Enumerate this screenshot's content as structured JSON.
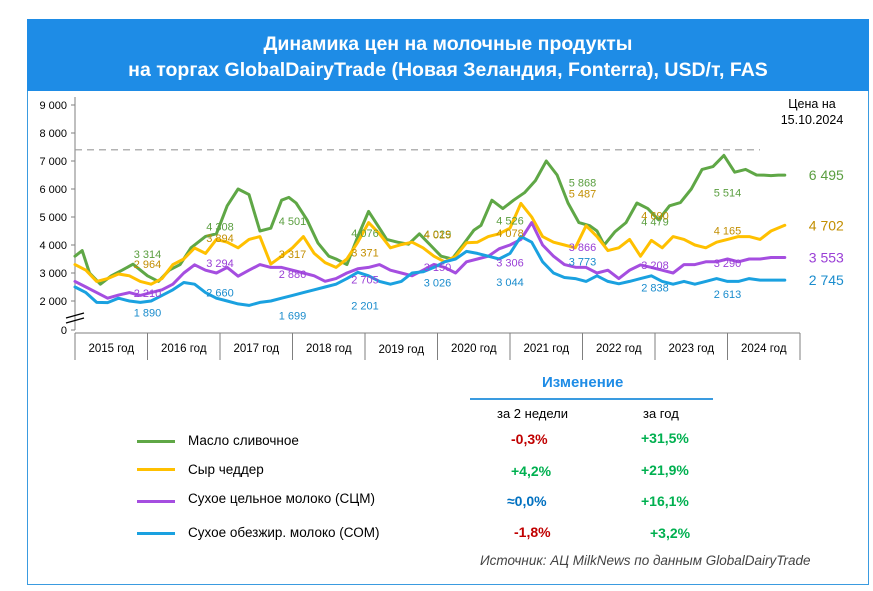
{
  "title": {
    "line1": "Динамика цен на молочные продукты",
    "line2": "на торгах GlobalDairyTrade (Новая Зеландия, Fonterra), USD/т, FAS"
  },
  "price_note": {
    "line1": "Цена на",
    "line2": "15.10.2024"
  },
  "colors": {
    "butter": "#5fa746",
    "cheddar": "#ffc000",
    "wmp": "#a54ee0",
    "smp": "#1aa1e0",
    "negative": "#c00000",
    "positive": "#00b050",
    "neutral": "#0070c0",
    "header": "#1e8ce6"
  },
  "change": {
    "title": "Изменение",
    "col_2w": "за 2 недели",
    "col_year": "за год",
    "rows": [
      {
        "label": "Масло сливочное",
        "w2": "-0,3%",
        "year": "+31,5%",
        "w2_tone": "negative",
        "year_tone": "positive"
      },
      {
        "label": "Сыр чеддер",
        "w2": "+4,2%",
        "year": "+21,9%",
        "w2_tone": "positive",
        "year_tone": "positive"
      },
      {
        "label": "Сухое цельное молоко (СЦМ)",
        "w2": "≈0,0%",
        "year": "+16,1%",
        "w2_tone": "neutral",
        "year_tone": "positive"
      },
      {
        "label": "Сухое обезжир. молоко (СОМ)",
        "w2": "-1,8%",
        "year": "+3,2%",
        "w2_tone": "negative",
        "year_tone": "positive"
      }
    ]
  },
  "source": "Источник: АЦ MilkNews по данным GlobalDairyTrade",
  "chart_data": {
    "type": "line",
    "x_categories": [
      "2015 год",
      "2016 год",
      "2017 год",
      "2018 год",
      "2019 год",
      "2020 год",
      "2021 год",
      "2022 год",
      "2023 год",
      "2024 год"
    ],
    "y_ticks": [
      "0",
      "2 000",
      "3 000",
      "4 000",
      "5 000",
      "6 000",
      "7 000",
      "8 000",
      "9 000"
    ],
    "ylim": [
      0,
      9000
    ],
    "y_axis_break": true,
    "reference_line": 7400,
    "series": [
      {
        "key": "butter",
        "name": "Масло сливочное",
        "x": [
          2015.0,
          2015.1,
          2015.2,
          2015.35,
          2015.5,
          2015.65,
          2015.8,
          2016.0,
          2016.15,
          2016.3,
          2016.45,
          2016.6,
          2016.8,
          2016.95,
          2017.1,
          2017.25,
          2017.4,
          2017.55,
          2017.7,
          2017.85,
          2017.95,
          2018.05,
          2018.2,
          2018.35,
          2018.5,
          2018.6,
          2018.75,
          2018.9,
          2019.05,
          2019.2,
          2019.3,
          2019.45,
          2019.6,
          2019.75,
          2019.9,
          2020.05,
          2020.2,
          2020.35,
          2020.5,
          2020.6,
          2020.75,
          2020.9,
          2021.05,
          2021.2,
          2021.35,
          2021.5,
          2021.65,
          2021.8,
          2021.95,
          2022.1,
          2022.2,
          2022.3,
          2022.45,
          2022.6,
          2022.75,
          2022.9,
          2023.05,
          2023.2,
          2023.35,
          2023.5,
          2023.65,
          2023.8,
          2023.95,
          2024.1,
          2024.25,
          2024.4,
          2024.5,
          2024.6,
          2024.7,
          2024.79
        ],
        "y": [
          3600,
          3800,
          3000,
          2600,
          2900,
          3100,
          3314,
          2900,
          2700,
          3100,
          3300,
          3900,
          4308,
          4400,
          5400,
          6000,
          5800,
          4501,
          4600,
          5600,
          5700,
          5500,
          4900,
          4076,
          3600,
          3500,
          3300,
          4300,
          5200,
          4600,
          4200,
          4100,
          4029,
          4400,
          4000,
          3600,
          3500,
          4000,
          4526,
          4700,
          5600,
          5300,
          5600,
          5868,
          6300,
          7000,
          6500,
          5500,
          4800,
          4690,
          4500,
          4000,
          4479,
          4800,
          5500,
          5300,
          4900,
          5400,
          5514,
          6000,
          6700,
          6800,
          7200,
          6600,
          6700,
          6500,
          6495,
          6480,
          6495,
          6495
        ]
      },
      {
        "key": "cheddar",
        "name": "Сыр чеддер",
        "x": [
          2015.0,
          2015.15,
          2015.3,
          2015.45,
          2015.6,
          2015.75,
          2015.9,
          2016.05,
          2016.2,
          2016.35,
          2016.5,
          2016.65,
          2016.8,
          2016.95,
          2017.1,
          2017.25,
          2017.4,
          2017.55,
          2017.7,
          2017.85,
          2018.0,
          2018.15,
          2018.3,
          2018.45,
          2018.6,
          2018.75,
          2018.9,
          2019.05,
          2019.2,
          2019.35,
          2019.5,
          2019.65,
          2019.8,
          2019.95,
          2020.1,
          2020.25,
          2020.4,
          2020.55,
          2020.7,
          2020.85,
          2021.0,
          2021.15,
          2021.3,
          2021.45,
          2021.6,
          2021.75,
          2021.9,
          2022.05,
          2022.2,
          2022.35,
          2022.5,
          2022.65,
          2022.8,
          2022.95,
          2023.1,
          2023.25,
          2023.4,
          2023.55,
          2023.7,
          2023.85,
          2024.0,
          2024.15,
          2024.3,
          2024.45,
          2024.6,
          2024.79
        ],
        "y": [
          3300,
          3100,
          2700,
          2800,
          2964,
          2900,
          2700,
          2600,
          2800,
          3300,
          3500,
          3894,
          3700,
          4200,
          4100,
          3900,
          4200,
          4300,
          3317,
          3600,
          3900,
          4300,
          3700,
          3371,
          3200,
          3500,
          4100,
          4800,
          4400,
          3900,
          4015,
          4100,
          3900,
          3600,
          3400,
          3600,
          4078,
          4100,
          4300,
          4400,
          4600,
          5487,
          5000,
          4300,
          4100,
          4000,
          3900,
          4690,
          4300,
          3800,
          3900,
          4200,
          3600,
          4165,
          3900,
          4300,
          4200,
          4000,
          3900,
          4100,
          4200,
          4300,
          4300,
          4200,
          4500,
          4702
        ]
      },
      {
        "key": "wmp",
        "name": "Сухое цельное молоко (СЦМ)",
        "x": [
          2015.0,
          2015.15,
          2015.3,
          2015.45,
          2015.6,
          2015.75,
          2015.9,
          2016.05,
          2016.2,
          2016.35,
          2016.5,
          2016.65,
          2016.8,
          2016.95,
          2017.1,
          2017.25,
          2017.4,
          2017.55,
          2017.7,
          2017.85,
          2018.0,
          2018.15,
          2018.3,
          2018.45,
          2018.6,
          2018.75,
          2018.9,
          2019.05,
          2019.2,
          2019.35,
          2019.5,
          2019.65,
          2019.8,
          2019.95,
          2020.1,
          2020.25,
          2020.4,
          2020.55,
          2020.7,
          2020.85,
          2021.0,
          2021.15,
          2021.3,
          2021.45,
          2021.6,
          2021.75,
          2021.9,
          2022.05,
          2022.2,
          2022.35,
          2022.5,
          2022.65,
          2022.8,
          2022.95,
          2023.1,
          2023.25,
          2023.4,
          2023.55,
          2023.7,
          2023.85,
          2024.0,
          2024.15,
          2024.3,
          2024.45,
          2024.6,
          2024.79
        ],
        "y": [
          2700,
          2500,
          2300,
          2100,
          2210,
          2300,
          2200,
          2300,
          2400,
          2600,
          3000,
          3294,
          3100,
          3000,
          3200,
          2886,
          3100,
          3300,
          3200,
          3200,
          3100,
          3000,
          2900,
          2705,
          2800,
          3000,
          3150,
          3200,
          3300,
          3100,
          3000,
          2900,
          3100,
          3306,
          3200,
          3000,
          3400,
          3500,
          3600,
          3866,
          4000,
          4200,
          4800,
          4000,
          3600,
          3300,
          3208,
          3200,
          3000,
          3100,
          2800,
          3100,
          3290,
          3200,
          3100,
          3000,
          3300,
          3300,
          3400,
          3400,
          3500,
          3400,
          3500,
          3500,
          3553,
          3553
        ]
      },
      {
        "key": "smp",
        "name": "Сухое обезжир. молоко (СОМ)",
        "x": [
          2015.0,
          2015.15,
          2015.3,
          2015.45,
          2015.6,
          2015.75,
          2015.9,
          2016.05,
          2016.2,
          2016.35,
          2016.5,
          2016.65,
          2016.8,
          2016.95,
          2017.1,
          2017.25,
          2017.4,
          2017.55,
          2017.7,
          2017.85,
          2018.0,
          2018.15,
          2018.3,
          2018.45,
          2018.6,
          2018.75,
          2018.9,
          2019.05,
          2019.2,
          2019.35,
          2019.5,
          2019.65,
          2019.8,
          2019.95,
          2020.1,
          2020.25,
          2020.4,
          2020.55,
          2020.7,
          2020.85,
          2021.0,
          2021.15,
          2021.3,
          2021.45,
          2021.6,
          2021.75,
          2021.9,
          2022.05,
          2022.2,
          2022.35,
          2022.5,
          2022.65,
          2022.8,
          2022.95,
          2023.1,
          2023.25,
          2023.4,
          2023.55,
          2023.7,
          2023.85,
          2024.0,
          2024.15,
          2024.3,
          2024.45,
          2024.6,
          2024.79
        ],
        "y": [
          2500,
          2300,
          1900,
          1890,
          2100,
          2000,
          1900,
          2000,
          2200,
          2400,
          2660,
          2600,
          2300,
          2100,
          2000,
          1800,
          1699,
          1900,
          2000,
          2100,
          2201,
          2300,
          2400,
          2500,
          2600,
          2800,
          3026,
          2900,
          2700,
          2600,
          2700,
          3000,
          3044,
          3200,
          3400,
          3500,
          3773,
          3700,
          3600,
          3500,
          3700,
          4300,
          4100,
          3400,
          3000,
          2838,
          2800,
          2700,
          2900,
          2700,
          2613,
          2700,
          2800,
          2900,
          2700,
          2600,
          2700,
          2600,
          2700,
          2800,
          2700,
          2700,
          2800,
          2745,
          2745,
          2745
        ]
      }
    ],
    "data_labels": [
      {
        "series": "butter",
        "x": 2016.0,
        "y": 3314,
        "text": "3 314"
      },
      {
        "series": "butter",
        "x": 2017.0,
        "y": 4308,
        "text": "4 308"
      },
      {
        "series": "butter",
        "x": 2018.0,
        "y": 4501,
        "text": "4 501"
      },
      {
        "series": "butter",
        "x": 2019.0,
        "y": 4076,
        "text": "4 076"
      },
      {
        "series": "butter",
        "x": 2020.0,
        "y": 4029,
        "text": "4 029"
      },
      {
        "series": "butter",
        "x": 2021.0,
        "y": 4526,
        "text": "4 526"
      },
      {
        "series": "butter",
        "x": 2022.0,
        "y": 5868,
        "text": "5 868"
      },
      {
        "series": "butter",
        "x": 2023.0,
        "y": 4479,
        "text": "4 479"
      },
      {
        "series": "butter",
        "x": 2024.0,
        "y": 5514,
        "text": "5 514"
      },
      {
        "series": "butter",
        "x": 2024.79,
        "y": 6495,
        "text": "6 495",
        "end": true
      },
      {
        "series": "cheddar",
        "x": 2016.0,
        "y": 2964,
        "text": "2 964"
      },
      {
        "series": "cheddar",
        "x": 2017.0,
        "y": 3894,
        "text": "3 894"
      },
      {
        "series": "cheddar",
        "x": 2018.0,
        "y": 3317,
        "text": "3 317"
      },
      {
        "series": "cheddar",
        "x": 2019.0,
        "y": 3371,
        "text": "3 371"
      },
      {
        "series": "cheddar",
        "x": 2020.0,
        "y": 4015,
        "text": "4 015"
      },
      {
        "series": "cheddar",
        "x": 2021.0,
        "y": 4078,
        "text": "4 078"
      },
      {
        "series": "cheddar",
        "x": 2022.0,
        "y": 5487,
        "text": "5 487"
      },
      {
        "series": "cheddar",
        "x": 2023.0,
        "y": 4690,
        "text": "4 690"
      },
      {
        "series": "cheddar",
        "x": 2024.0,
        "y": 4165,
        "text": "4 165"
      },
      {
        "series": "cheddar",
        "x": 2024.79,
        "y": 4702,
        "text": "4 702",
        "end": true
      },
      {
        "series": "wmp",
        "x": 2016.0,
        "y": 2210,
        "text": "2 210"
      },
      {
        "series": "wmp",
        "x": 2017.0,
        "y": 3294,
        "text": "3 294"
      },
      {
        "series": "wmp",
        "x": 2018.0,
        "y": 2886,
        "text": "2 886"
      },
      {
        "series": "wmp",
        "x": 2019.0,
        "y": 2705,
        "text": "2 705"
      },
      {
        "series": "wmp",
        "x": 2020.0,
        "y": 3150,
        "text": "3 150"
      },
      {
        "series": "wmp",
        "x": 2021.0,
        "y": 3306,
        "text": "3 306"
      },
      {
        "series": "wmp",
        "x": 2022.0,
        "y": 3866,
        "text": "3 866"
      },
      {
        "series": "wmp",
        "x": 2023.0,
        "y": 3208,
        "text": "3 208"
      },
      {
        "series": "wmp",
        "x": 2024.0,
        "y": 3290,
        "text": "3 290"
      },
      {
        "series": "wmp",
        "x": 2024.79,
        "y": 3553,
        "text": "3 553",
        "end": true
      },
      {
        "series": "smp",
        "x": 2016.0,
        "y": 1890,
        "text": "1 890"
      },
      {
        "series": "smp",
        "x": 2017.0,
        "y": 2660,
        "text": "2 660"
      },
      {
        "series": "smp",
        "x": 2018.0,
        "y": 1699,
        "text": "1 699"
      },
      {
        "series": "smp",
        "x": 2019.0,
        "y": 2201,
        "text": "2 201"
      },
      {
        "series": "smp",
        "x": 2020.0,
        "y": 3026,
        "text": "3 026"
      },
      {
        "series": "smp",
        "x": 2021.0,
        "y": 3044,
        "text": "3 044"
      },
      {
        "series": "smp",
        "x": 2022.0,
        "y": 3773,
        "text": "3 773"
      },
      {
        "series": "smp",
        "x": 2023.0,
        "y": 2838,
        "text": "2 838"
      },
      {
        "series": "smp",
        "x": 2024.0,
        "y": 2613,
        "text": "2 613"
      },
      {
        "series": "smp",
        "x": 2024.79,
        "y": 2745,
        "text": "2 745",
        "end": true
      }
    ]
  }
}
